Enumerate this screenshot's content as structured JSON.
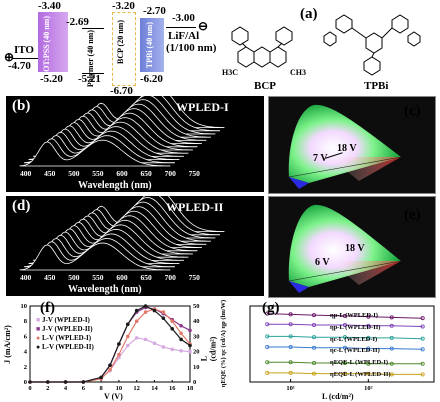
{
  "panel_a": {
    "letter": "(a)",
    "ito": "ITO",
    "ito_value": "-4.70",
    "pedot_label": "PEDOT:PSS (40 nm)",
    "pedot_top": "-3.40",
    "pedot_bottom": "-5.20",
    "polymer_label": "Polymer (40 nm)",
    "polymer_top": "-2.69",
    "polymer_bottom": "-5.21",
    "bcp_label": "BCP (20 nm)",
    "bcp_top": "-3.20",
    "bcp_bottom": "-6.70",
    "tpbi_label": "TPBi (40 nm)",
    "tpbi_top": "-2.70",
    "tpbi_bottom": "-6.20",
    "lif_value": "-3.00",
    "lif_label": "LiF/Al",
    "lif_thickness": "(1/100 nm)",
    "mol1": "BCP",
    "mol2": "TPBi",
    "h3c": "H3C",
    "ch3": "CH3"
  },
  "panel_b": {
    "letter": "(b)",
    "title": "WPLED-I",
    "xlabel": "Wavelength (nm)",
    "ticks": [
      "400",
      "450",
      "500",
      "550",
      "600",
      "650",
      "700",
      "750"
    ]
  },
  "panel_c": {
    "letter": "(c)",
    "voltage_high": "18 V",
    "voltage_low": "7 V"
  },
  "panel_d": {
    "letter": "(d)",
    "title": "WPLED-II",
    "xlabel": "Wavelength (nm)",
    "ticks": [
      "400",
      "450",
      "500",
      "550",
      "600",
      "650",
      "700",
      "750"
    ]
  },
  "panel_e": {
    "letter": "(e)",
    "voltage_high": "18 V",
    "voltage_low": "6 V"
  },
  "panel_f": {
    "letter": "(f)",
    "ylabel_left": "J (mA/cm²)",
    "ylabel_right": "L (cd/m²)",
    "xlabel": "V (V)",
    "yticks_left": [
      "0",
      "2",
      "4",
      "6",
      "8",
      "10"
    ],
    "yticks_right": [
      "0",
      "10",
      "20",
      "30",
      "40",
      "50"
    ],
    "xticks": [
      "0",
      "2",
      "4",
      "6",
      "8",
      "10",
      "12",
      "14",
      "16",
      "18"
    ],
    "legend": [
      "J-V (WPLED-I)",
      "J-V (WPLED-II)",
      "L-V (WPLED-I)",
      "L-V (WPLED-II)"
    ],
    "colors": [
      "#d6a9e0",
      "#8c3a8c",
      "#e07a6a",
      "#1a1a1a"
    ]
  },
  "panel_g": {
    "letter": "(g)",
    "ylabel": "ηEQE (%)  ηc (cd/A)  ηp (lm/W)",
    "xlabel": "L (cd/m²)",
    "xticks": [
      "10¹",
      "10²"
    ],
    "legend": [
      "ηp-L (WPLED-I)",
      "ηp-L (WPLED-II)",
      "ηc-L (WPLED-I)",
      "ηc-L (WPLED-II)",
      "ηEQE-L (WPLED-I)",
      "ηEQE-L (WPLED-II)"
    ],
    "colors": [
      "#6a1a6a",
      "#7e44b8",
      "#2aa39a",
      "#3a7ad0",
      "#4e8a2a",
      "#c9a21a"
    ]
  },
  "chart_data": [
    {
      "type": "line",
      "title": "",
      "xlabel": "V (V)",
      "ylabel": "J (mA/cm²)",
      "y2label": "L (cd/m²)",
      "xlim": [
        0,
        18
      ],
      "ylim": [
        0,
        10
      ],
      "y2lim": [
        0,
        50
      ],
      "x": [
        0,
        2,
        4,
        6,
        8,
        9,
        10,
        11,
        12,
        13,
        14,
        15,
        16,
        17,
        18
      ],
      "series": [
        {
          "name": "J-V (WPLED-I)",
          "axis": "left",
          "values": [
            0,
            0,
            0,
            0,
            0.5,
            1.5,
            3.2,
            4.8,
            5.8,
            5.6,
            5.1,
            4.6,
            4.3,
            4.1,
            4.0
          ]
        },
        {
          "name": "J-V (WPLED-II)",
          "axis": "left",
          "values": [
            0,
            0,
            0,
            0,
            0.6,
            2.2,
            5.0,
            7.6,
            9.2,
            9.8,
            9.6,
            9.0,
            8.2,
            7.4,
            6.8
          ]
        },
        {
          "name": "L-V (WPLED-I)",
          "axis": "right",
          "values": [
            0,
            0,
            0,
            0,
            2,
            8,
            18,
            30,
            40,
            46,
            48,
            46,
            40,
            32,
            25
          ]
        },
        {
          "name": "L-V (WPLED-II)",
          "axis": "right",
          "values": [
            0,
            0,
            0,
            0,
            3,
            11,
            25,
            38,
            47,
            50,
            47,
            42,
            35,
            28,
            24
          ]
        }
      ]
    },
    {
      "type": "line",
      "title": "",
      "xlabel": "L (cd/m²)",
      "ylabel": "ηEQE (%)  ηc (cd/A)  ηp (lm/W)",
      "log_x": true,
      "x": [
        5,
        10,
        20,
        50,
        100,
        200,
        500
      ],
      "series": [
        {
          "name": "ηp-L (WPLED-I)",
          "values": [
            9.0,
            8.9,
            8.8,
            8.7,
            8.6,
            8.5,
            8.4
          ]
        },
        {
          "name": "ηp-L (WPLED-II)",
          "values": [
            7.6,
            7.6,
            7.5,
            7.5,
            7.4,
            7.4,
            7.3
          ]
        },
        {
          "name": "ηc-L (WPLED-I)",
          "values": [
            6.0,
            6.0,
            5.9,
            5.9,
            5.8,
            5.8,
            5.7
          ]
        },
        {
          "name": "ηc-L (WPLED-II)",
          "values": [
            4.6,
            4.6,
            4.5,
            4.5,
            4.4,
            4.4,
            4.3
          ]
        },
        {
          "name": "ηEQE-L (WPLED-I)",
          "values": [
            2.6,
            2.6,
            2.5,
            2.5,
            2.4,
            2.4,
            2.4
          ]
        },
        {
          "name": "ηEQE-L (WPLED-II)",
          "values": [
            1.2,
            1.2,
            1.1,
            1.1,
            1.1,
            1.0,
            1.0
          ]
        }
      ]
    }
  ]
}
